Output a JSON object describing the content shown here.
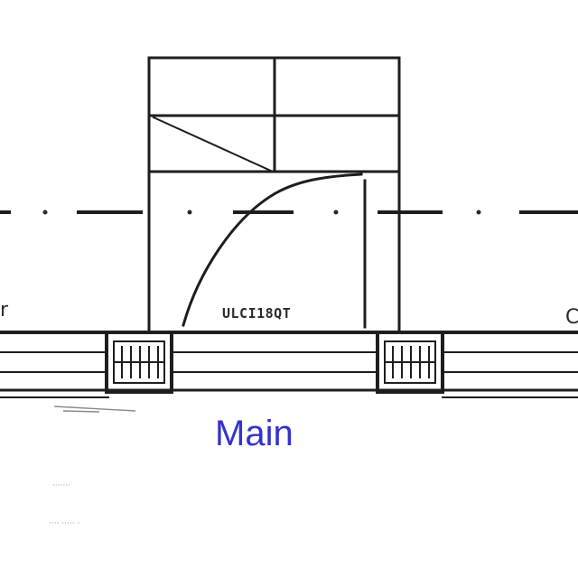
{
  "plan": {
    "room_label": "ULCI18QT",
    "left_edge_label": "r",
    "right_edge_label": "C",
    "notes": [
      "·······",
      "···· ····· ·"
    ]
  },
  "caption": {
    "text": "Main",
    "color": "#3333cc"
  }
}
